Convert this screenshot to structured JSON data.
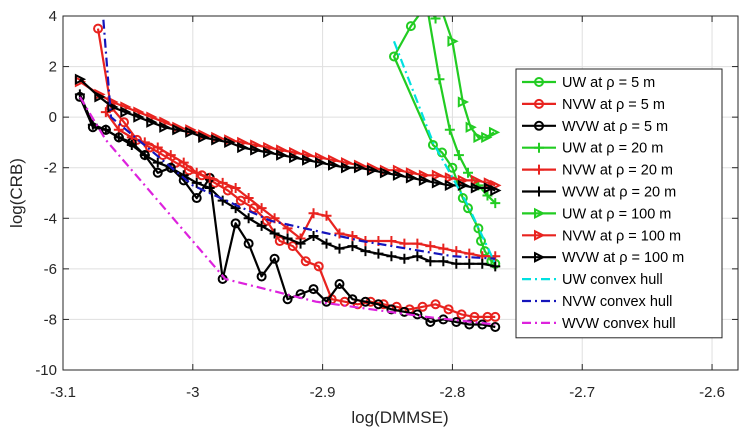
{
  "chart_data": {
    "type": "line",
    "xlabel": "log(DMMSE)",
    "ylabel": "log(CRB)",
    "xlim": [
      -3.1,
      -2.58
    ],
    "ylim": [
      -10,
      4
    ],
    "xticks": [
      -3.1,
      -3.0,
      -2.9,
      -2.8,
      -2.7,
      -2.6
    ],
    "xtick_labels": [
      "-3.1",
      "-3",
      "-2.9",
      "-2.8",
      "-2.7",
      "-2.6"
    ],
    "yticks": [
      -10,
      -8,
      -6,
      -4,
      -2,
      0,
      2,
      4
    ],
    "ytick_labels": [
      "-10",
      "-8",
      "-6",
      "-4",
      "-2",
      "0",
      "2",
      "4"
    ],
    "grid": true,
    "legend_position": "right",
    "series": [
      {
        "name": "UW at ρ = 5 m",
        "color": "#22cc22",
        "marker": "circle",
        "style": "solid",
        "x": [
          -2.822,
          -2.832,
          -2.845,
          -2.815,
          -2.808,
          -2.8,
          -2.792,
          -2.788,
          -2.78,
          -2.778,
          -2.775,
          -2.77,
          -2.767
        ],
        "y": [
          4.3,
          3.6,
          2.4,
          -1.1,
          -1.4,
          -2.0,
          -3.2,
          -3.6,
          -4.4,
          -4.9,
          -5.3,
          -5.7,
          -5.8
        ]
      },
      {
        "name": "NVW at ρ = 5 m",
        "color": "#e8231f",
        "marker": "circle",
        "style": "solid",
        "x": [
          -3.073,
          -3.063,
          -3.053,
          -3.043,
          -3.033,
          -3.023,
          -3.013,
          -3.003,
          -2.993,
          -2.983,
          -2.973,
          -2.963,
          -2.953,
          -2.943,
          -2.933,
          -2.923,
          -2.913,
          -2.903,
          -2.893,
          -2.883,
          -2.873,
          -2.863,
          -2.853,
          -2.843,
          -2.833,
          -2.823,
          -2.813,
          -2.803,
          -2.793,
          -2.783,
          -2.773,
          -2.767
        ],
        "y": [
          3.5,
          0.4,
          -0.2,
          -0.9,
          -1.2,
          -1.5,
          -1.8,
          -2.1,
          -2.3,
          -2.6,
          -2.9,
          -3.3,
          -3.6,
          -4.1,
          -4.9,
          -5.1,
          -5.7,
          -5.9,
          -7.2,
          -7.3,
          -7.4,
          -7.3,
          -7.4,
          -7.5,
          -7.6,
          -7.5,
          -7.4,
          -7.6,
          -7.8,
          -7.9,
          -7.9,
          -7.9
        ]
      },
      {
        "name": "WVW at ρ = 5 m",
        "color": "#000000",
        "marker": "circle",
        "style": "solid",
        "x": [
          -3.087,
          -3.077,
          -3.067,
          -3.057,
          -3.047,
          -3.037,
          -3.027,
          -3.017,
          -3.007,
          -2.997,
          -2.987,
          -2.977,
          -2.967,
          -2.957,
          -2.947,
          -2.937,
          -2.927,
          -2.917,
          -2.907,
          -2.897,
          -2.887,
          -2.877,
          -2.867,
          -2.857,
          -2.847,
          -2.837,
          -2.827,
          -2.817,
          -2.807,
          -2.797,
          -2.787,
          -2.777,
          -2.767
        ],
        "y": [
          0.8,
          -0.4,
          -0.5,
          -0.8,
          -1.0,
          -1.5,
          -2.2,
          -2.0,
          -2.5,
          -3.2,
          -2.4,
          -6.4,
          -4.2,
          -5.0,
          -6.3,
          -5.6,
          -7.2,
          -7.0,
          -6.8,
          -7.3,
          -6.6,
          -7.2,
          -7.3,
          -7.4,
          -7.6,
          -7.7,
          -7.8,
          -8.1,
          -8.0,
          -8.1,
          -8.2,
          -8.2,
          -8.3
        ]
      },
      {
        "name": "UW at ρ = 20 m",
        "color": "#22cc22",
        "marker": "plus",
        "style": "solid",
        "x": [
          -2.813,
          -2.82,
          -2.81,
          -2.802,
          -2.795,
          -2.788,
          -2.78,
          -2.773,
          -2.767
        ],
        "y": [
          3.9,
          4.5,
          1.5,
          -0.5,
          -1.5,
          -2.2,
          -2.7,
          -3.1,
          -3.4
        ]
      },
      {
        "name": "NVW at ρ = 20 m",
        "color": "#e8231f",
        "marker": "plus",
        "style": "solid",
        "x": [
          -3.067,
          -3.057,
          -3.047,
          -3.037,
          -3.027,
          -3.017,
          -3.007,
          -2.997,
          -2.987,
          -2.977,
          -2.967,
          -2.957,
          -2.947,
          -2.937,
          -2.927,
          -2.917,
          -2.907,
          -2.897,
          -2.887,
          -2.877,
          -2.867,
          -2.857,
          -2.847,
          -2.837,
          -2.827,
          -2.817,
          -2.807,
          -2.797,
          -2.787,
          -2.777,
          -2.767
        ],
        "y": [
          0.2,
          -0.5,
          -0.8,
          -1.0,
          -1.2,
          -1.5,
          -1.8,
          -2.2,
          -2.4,
          -2.6,
          -2.8,
          -3.2,
          -3.6,
          -4.0,
          -4.4,
          -4.8,
          -3.8,
          -3.9,
          -4.6,
          -4.7,
          -4.9,
          -4.9,
          -4.9,
          -5.0,
          -5.0,
          -5.1,
          -5.2,
          -5.3,
          -5.4,
          -5.5,
          -5.5
        ]
      },
      {
        "name": "WVW at ρ = 20 m",
        "color": "#000000",
        "marker": "plus",
        "style": "solid",
        "x": [
          -3.087,
          -3.077,
          -3.067,
          -3.057,
          -3.047,
          -3.037,
          -3.027,
          -3.017,
          -3.007,
          -2.997,
          -2.987,
          -2.977,
          -2.967,
          -2.957,
          -2.947,
          -2.937,
          -2.927,
          -2.917,
          -2.907,
          -2.897,
          -2.887,
          -2.877,
          -2.867,
          -2.857,
          -2.847,
          -2.837,
          -2.827,
          -2.817,
          -2.807,
          -2.797,
          -2.787,
          -2.777,
          -2.767
        ],
        "y": [
          0.9,
          -0.3,
          -0.5,
          -0.8,
          -1.1,
          -1.5,
          -1.8,
          -2.0,
          -2.3,
          -2.6,
          -2.8,
          -3.3,
          -3.6,
          -4.0,
          -4.3,
          -4.6,
          -4.8,
          -5.0,
          -4.7,
          -5.0,
          -5.2,
          -5.1,
          -5.3,
          -5.4,
          -5.5,
          -5.6,
          -5.5,
          -5.7,
          -5.7,
          -5.8,
          -5.8,
          -5.8,
          -5.9
        ]
      },
      {
        "name": "UW at ρ = 100 m",
        "color": "#22cc22",
        "marker": "triangle-right",
        "style": "solid",
        "x": [
          -2.81,
          -2.8,
          -2.792,
          -2.786,
          -2.78,
          -2.774,
          -2.768
        ],
        "y": [
          4.5,
          3.0,
          0.6,
          -0.4,
          -0.8,
          -0.8,
          -0.6
        ]
      },
      {
        "name": "NVW at ρ = 100 m",
        "color": "#e8231f",
        "marker": "triangle-right",
        "style": "solid",
        "x": [
          -3.087,
          -3.072,
          -3.062,
          -3.052,
          -3.042,
          -3.032,
          -3.022,
          -3.012,
          -3.002,
          -2.992,
          -2.982,
          -2.972,
          -2.962,
          -2.952,
          -2.942,
          -2.932,
          -2.922,
          -2.912,
          -2.902,
          -2.892,
          -2.882,
          -2.872,
          -2.862,
          -2.852,
          -2.842,
          -2.832,
          -2.822,
          -2.812,
          -2.802,
          -2.792,
          -2.782,
          -2.772,
          -2.767
        ],
        "y": [
          1.4,
          0.9,
          0.6,
          0.4,
          0.2,
          0.0,
          -0.2,
          -0.4,
          -0.5,
          -0.7,
          -0.8,
          -0.9,
          -1.0,
          -1.1,
          -1.2,
          -1.3,
          -1.4,
          -1.5,
          -1.6,
          -1.7,
          -1.8,
          -1.9,
          -2.0,
          -2.1,
          -2.1,
          -2.2,
          -2.3,
          -2.3,
          -2.4,
          -2.5,
          -2.5,
          -2.6,
          -2.7
        ]
      },
      {
        "name": "WVW at ρ = 100 m",
        "color": "#000000",
        "marker": "triangle-right",
        "style": "solid",
        "x": [
          -3.087,
          -3.072,
          -3.062,
          -3.052,
          -3.042,
          -3.032,
          -3.022,
          -3.012,
          -3.002,
          -2.992,
          -2.982,
          -2.972,
          -2.962,
          -2.952,
          -2.942,
          -2.932,
          -2.922,
          -2.912,
          -2.902,
          -2.892,
          -2.882,
          -2.872,
          -2.862,
          -2.852,
          -2.842,
          -2.832,
          -2.822,
          -2.812,
          -2.802,
          -2.792,
          -2.782,
          -2.772,
          -2.767
        ],
        "y": [
          1.5,
          0.8,
          0.4,
          0.2,
          0.0,
          -0.2,
          -0.4,
          -0.5,
          -0.6,
          -0.8,
          -0.9,
          -1.0,
          -1.2,
          -1.3,
          -1.4,
          -1.5,
          -1.6,
          -1.7,
          -1.8,
          -1.9,
          -2.0,
          -2.0,
          -2.1,
          -2.2,
          -2.3,
          -2.4,
          -2.5,
          -2.6,
          -2.7,
          -2.7,
          -2.8,
          -2.8,
          -2.9
        ]
      },
      {
        "name": "UW convex hull",
        "color": "#00e0e0",
        "marker": "none",
        "style": "dashdot",
        "x": [
          -2.845,
          -2.815,
          -2.788,
          -2.767
        ],
        "y": [
          3.0,
          -1.0,
          -3.5,
          -5.8
        ]
      },
      {
        "name": "NVW convex hull",
        "color": "#1515bb",
        "marker": "none",
        "style": "dashdot",
        "x": [
          -3.07,
          -3.063,
          -3.0,
          -2.94,
          -2.87,
          -2.8,
          -2.767
        ],
        "y": [
          4.6,
          0.0,
          -2.7,
          -4.1,
          -4.9,
          -5.5,
          -5.6
        ]
      },
      {
        "name": "WVW convex hull",
        "color": "#dd22dd",
        "marker": "none",
        "style": "dashdot",
        "x": [
          -3.087,
          -3.067,
          -2.975,
          -2.905,
          -2.82,
          -2.767
        ],
        "y": [
          0.8,
          -0.9,
          -6.4,
          -7.3,
          -7.9,
          -8.2
        ]
      }
    ]
  }
}
